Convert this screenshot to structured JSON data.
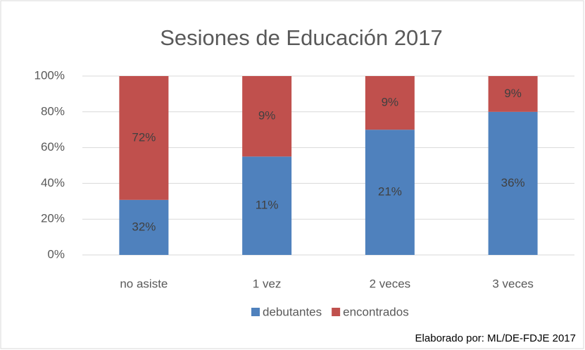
{
  "chart_data": {
    "type": "bar",
    "stacked": "percent",
    "title": "Sesiones de Educación 2017",
    "categories": [
      "no asiste",
      "1 vez",
      "2 veces",
      "3 veces"
    ],
    "series": [
      {
        "name": "debutantes",
        "color": "#4f81bd",
        "values": [
          32,
          11,
          21,
          36
        ],
        "value_labels": [
          "32%",
          "11%",
          "21%",
          "36%"
        ]
      },
      {
        "name": "encontrados",
        "color": "#c0504d",
        "values": [
          72,
          9,
          9,
          9
        ],
        "value_labels": [
          "72%",
          "9%",
          "9%",
          "9%"
        ]
      }
    ],
    "ylim": [
      0,
      100
    ],
    "yticks": [
      {
        "value": 0,
        "label": "0%"
      },
      {
        "value": 20,
        "label": "20%"
      },
      {
        "value": 40,
        "label": "40%"
      },
      {
        "value": 60,
        "label": "60%"
      },
      {
        "value": 80,
        "label": "80%"
      },
      {
        "value": 100,
        "label": "100%"
      }
    ],
    "grid": true,
    "legend": "bottom",
    "annotations": [
      "Elaborado por: ML/DE-FDJE 2017"
    ]
  }
}
